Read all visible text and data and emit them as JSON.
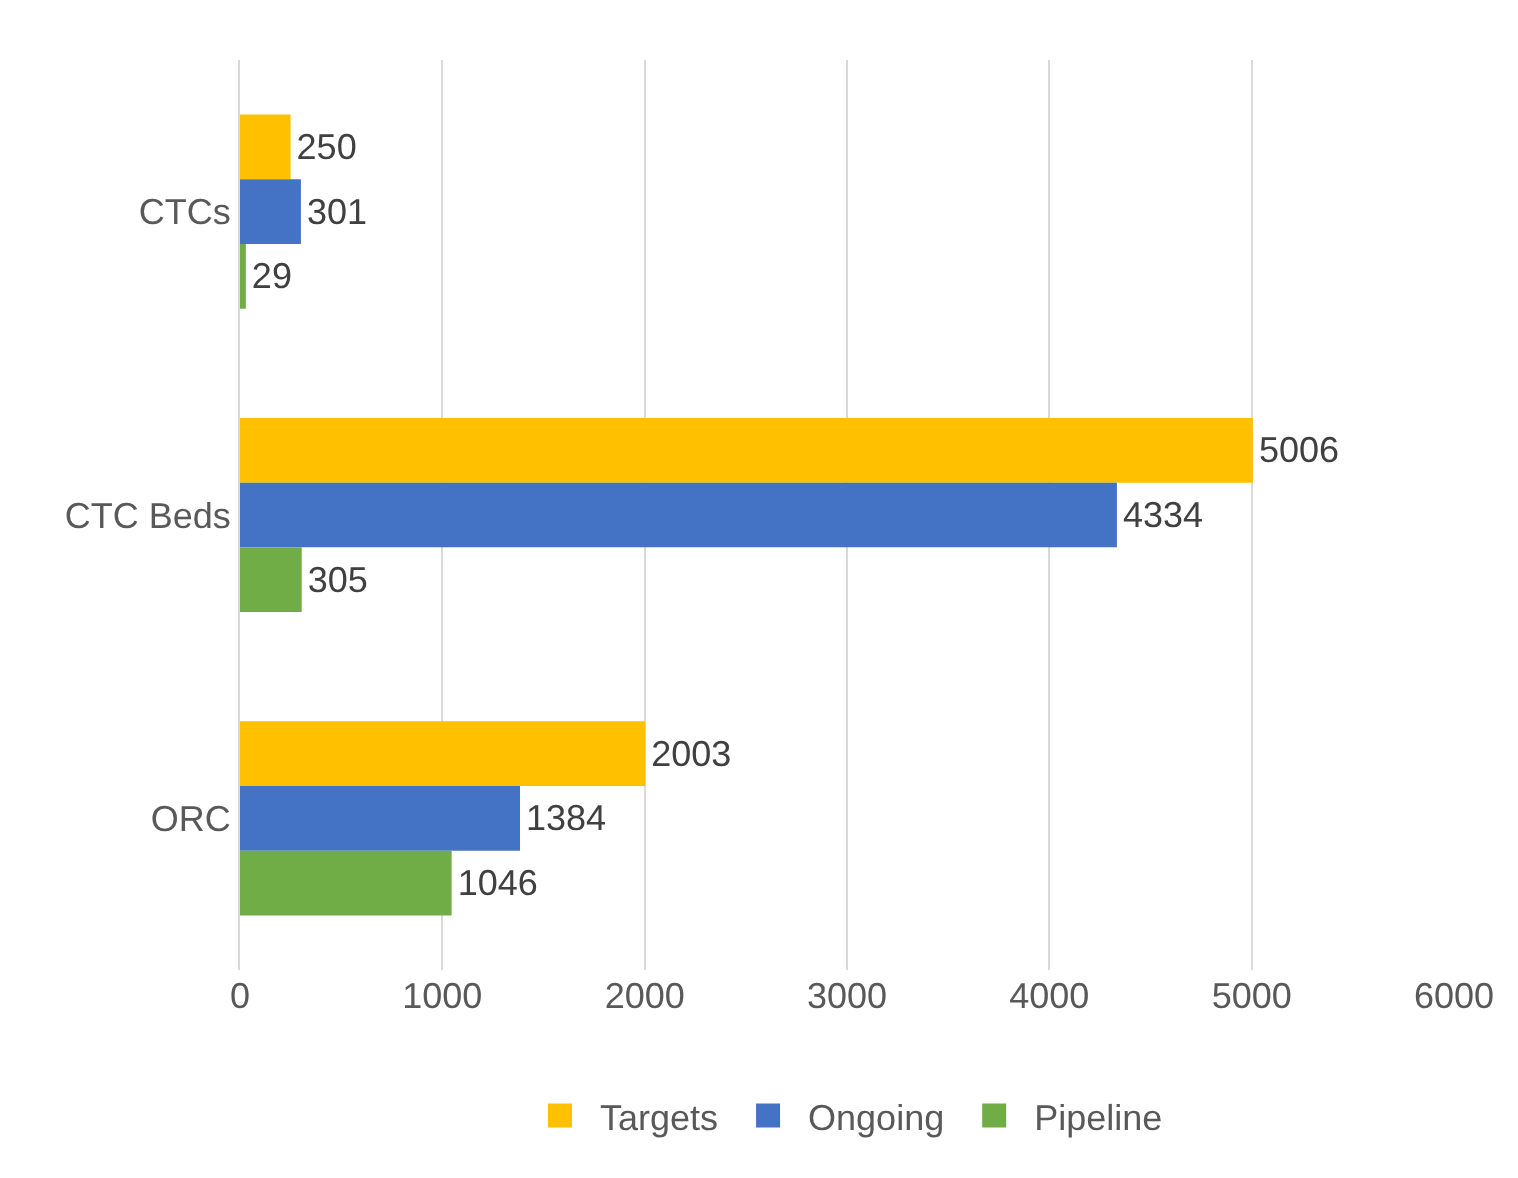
{
  "chart_data": {
    "type": "bar",
    "orientation": "horizontal",
    "categories": [
      "CTCs",
      "CTC Beds",
      "ORC"
    ],
    "series": [
      {
        "name": "Targets",
        "color": "#ffc000",
        "values": [
          250,
          5006,
          2003
        ]
      },
      {
        "name": "Ongoing",
        "color": "#4472c4",
        "values": [
          301,
          4334,
          1384
        ]
      },
      {
        "name": "Pipeline",
        "color": "#70ad47",
        "values": [
          29,
          305,
          1046
        ]
      }
    ],
    "xlim": [
      0,
      6000
    ],
    "xticks": [
      0,
      1000,
      2000,
      3000,
      4000,
      5000,
      6000
    ],
    "grid": "x",
    "legend": "bottom",
    "data_labels": true
  }
}
